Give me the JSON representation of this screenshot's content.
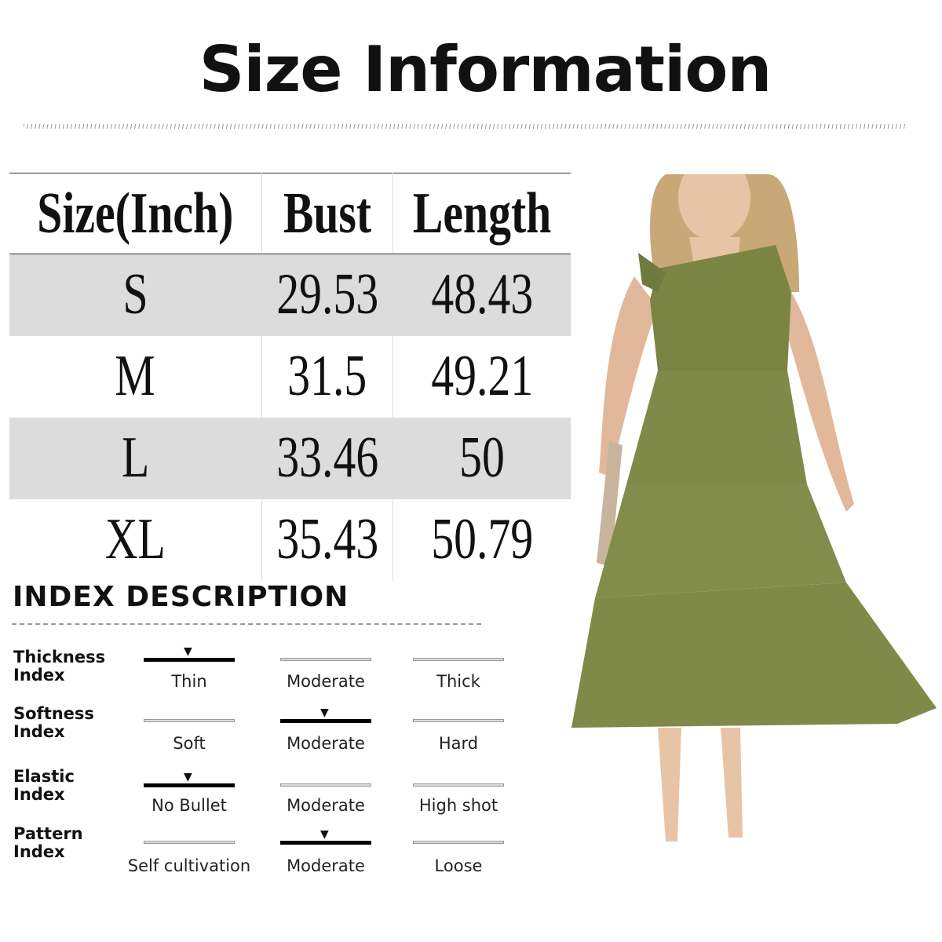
{
  "title": "Size Information",
  "size_table": {
    "headers": [
      "Size(Inch)",
      "Bust",
      "Length"
    ],
    "rows": [
      [
        "S",
        "29.53",
        "48.43"
      ],
      [
        "M",
        "31.5",
        "49.21"
      ],
      [
        "L",
        "33.46",
        "50"
      ],
      [
        "XL",
        "35.43",
        "50.79"
      ]
    ]
  },
  "index": {
    "title": "INDEX DESCRIPTION",
    "rows": [
      {
        "label": "Thickness Index",
        "options": [
          "Thin",
          "Moderate",
          "Thick"
        ],
        "selected": 0
      },
      {
        "label": "Softness Index",
        "options": [
          "Soft",
          "Moderate",
          "Hard"
        ],
        "selected": 1
      },
      {
        "label": "Elastic Index",
        "options": [
          "No Bullet",
          "Moderate",
          "High shot"
        ],
        "selected": 0
      },
      {
        "label": "Pattern Index",
        "options": [
          "Self cultivation",
          "Moderate",
          "Loose"
        ],
        "selected": 1
      }
    ]
  },
  "colors": {
    "dress": "#7f8a48",
    "row_shade": "#dcdcdc"
  },
  "product_image": "olive one-shoulder tiered midi dress"
}
